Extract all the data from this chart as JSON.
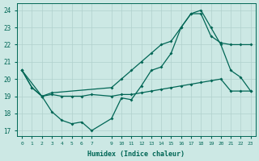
{
  "xlabel": "Humidex (Indice chaleur)",
  "bg_color": "#cce8e4",
  "grid_color": "#b0d0cc",
  "line_color": "#006655",
  "xlim_min": -0.5,
  "xlim_max": 23.5,
  "ylim_min": 16.7,
  "ylim_max": 24.4,
  "yticks": [
    17,
    18,
    19,
    20,
    21,
    22,
    23,
    24
  ],
  "xticks": [
    0,
    1,
    2,
    3,
    4,
    5,
    6,
    7,
    9,
    10,
    11,
    12,
    13,
    14,
    15,
    16,
    17,
    18,
    19,
    20,
    21,
    22,
    23
  ],
  "line1_x": [
    0,
    1,
    2,
    3,
    4,
    5,
    6,
    7,
    9,
    10,
    11,
    12,
    13,
    14,
    15,
    16,
    17,
    18,
    19,
    20,
    21,
    22,
    23
  ],
  "line1_y": [
    20.5,
    19.5,
    19.0,
    18.1,
    17.6,
    17.4,
    17.5,
    17.0,
    17.7,
    18.9,
    18.8,
    19.6,
    20.5,
    20.7,
    21.5,
    23.0,
    23.8,
    24.0,
    23.0,
    22.0,
    20.5,
    20.1,
    19.3
  ],
  "line2_x": [
    0,
    1,
    2,
    3,
    4,
    5,
    6,
    7,
    9,
    10,
    11,
    12,
    13,
    14,
    15,
    16,
    17,
    18,
    19,
    20,
    21,
    22,
    23
  ],
  "line2_y": [
    20.5,
    19.5,
    19.0,
    19.1,
    19.0,
    19.0,
    19.0,
    19.1,
    19.0,
    19.1,
    19.1,
    19.2,
    19.3,
    19.4,
    19.5,
    19.6,
    19.7,
    19.8,
    19.9,
    20.0,
    19.3,
    19.3,
    19.3
  ],
  "line3_x": [
    0,
    2,
    3,
    9,
    10,
    11,
    12,
    13,
    14,
    15,
    16,
    17,
    18,
    19,
    20,
    21,
    22,
    23
  ],
  "line3_y": [
    20.5,
    19.0,
    19.2,
    19.5,
    20.0,
    20.5,
    21.0,
    21.5,
    22.0,
    22.2,
    23.0,
    23.8,
    23.8,
    22.5,
    22.1,
    22.0,
    22.0,
    22.0
  ]
}
